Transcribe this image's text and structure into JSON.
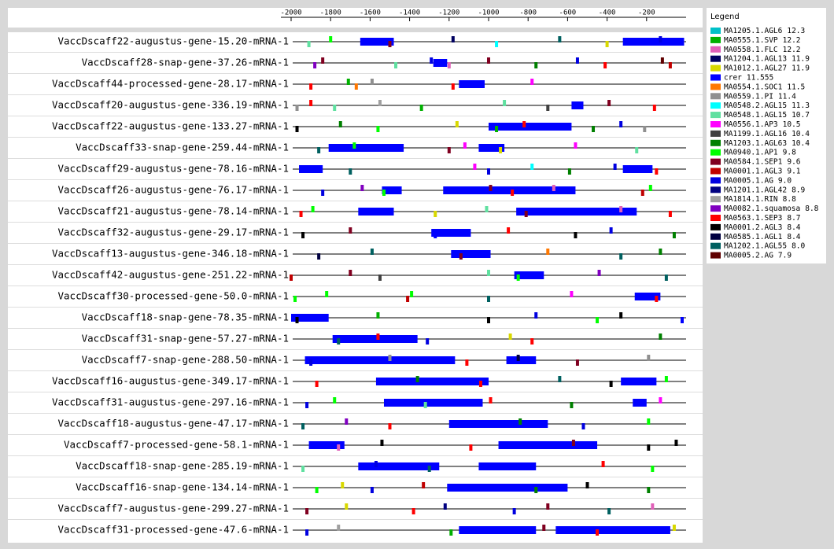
{
  "chart_data": {
    "type": "motif-track",
    "xlim": [
      -2000,
      0
    ],
    "xticks": [
      -2000,
      -1800,
      -1600,
      -1400,
      -1200,
      -1000,
      -800,
      -600,
      -400,
      -200
    ],
    "categories": [
      "VaccDscaff22-augustus-gene-15.20-mRNA-1",
      "VaccDscaff28-snap-gene-37.26-mRNA-1",
      "VaccDscaff44-processed-gene-28.17-mRNA-1",
      "VaccDscaff20-augustus-gene-336.19-mRNA-1",
      "VaccDscaff22-augustus-gene-133.27-mRNA-1",
      "VaccDscaff33-snap-gene-259.44-mRNA-1",
      "VaccDscaff29-augustus-gene-78.16-mRNA-1",
      "VaccDscaff26-augustus-gene-76.17-mRNA-1",
      "VaccDscaff21-augustus-gene-78.14-mRNA-1",
      "VaccDscaff32-augustus-gene-29.17-mRNA-1",
      "VaccDscaff13-augustus-gene-346.18-mRNA-1",
      "VaccDscaff42-augustus-gene-251.22-mRNA-1",
      "VaccDscaff30-processed-gene-50.0-mRNA-1",
      "VaccDscaff18-snap-gene-78.35-mRNA-1",
      "VaccDscaff31-snap-gene-57.27-mRNA-1",
      "VaccDscaff7-snap-gene-288.50-mRNA-1",
      "VaccDscaff16-augustus-gene-349.17-mRNA-1",
      "VaccDscaff31-augustus-gene-297.16-mRNA-1",
      "VaccDscaff18-augustus-gene-47.17-mRNA-1",
      "VaccDscaff7-processed-gene-58.1-mRNA-1",
      "VaccDscaff18-snap-gene-285.19-mRNA-1",
      "VaccDscaff16-snap-gene-134.14-mRNA-1",
      "VaccDscaff7-augustus-gene-299.27-mRNA-1",
      "VaccDscaff31-processed-gene-47.6-mRNA-1"
    ],
    "tracks": [
      {
        "blocks": [
          [
            -1650,
            -1480
          ],
          [
            -320,
            -10
          ]
        ],
        "sites": [
          [
            -1910,
            9
          ],
          [
            -1800,
            13
          ],
          [
            -1500,
            14
          ],
          [
            -1180,
            3
          ],
          [
            -960,
            8
          ],
          [
            -640,
            23
          ],
          [
            -400,
            4
          ],
          [
            -130,
            16
          ]
        ]
      },
      {
        "blocks": [
          [
            -1280,
            -1210
          ]
        ],
        "sites": [
          [
            -1880,
            19
          ],
          [
            -1840,
            14
          ],
          [
            -1470,
            9
          ],
          [
            -1290,
            16
          ],
          [
            -1200,
            2
          ],
          [
            -1000,
            14
          ],
          [
            -760,
            12
          ],
          [
            -550,
            16
          ],
          [
            -410,
            20
          ],
          [
            -120,
            24
          ],
          [
            -80,
            15
          ]
        ]
      },
      {
        "blocks": [
          [
            -1150,
            -1020
          ]
        ],
        "sites": [
          [
            -1900,
            20
          ],
          [
            -1710,
            1
          ],
          [
            -1670,
            6
          ],
          [
            -1590,
            7
          ],
          [
            -1180,
            20
          ],
          [
            -780,
            10
          ]
        ]
      },
      {
        "blocks": [
          [
            -580,
            -520
          ]
        ],
        "sites": [
          [
            -1970,
            7
          ],
          [
            -1900,
            20
          ],
          [
            -1780,
            9
          ],
          [
            -1550,
            18
          ],
          [
            -1340,
            1
          ],
          [
            -920,
            9
          ],
          [
            -700,
            11
          ],
          [
            -390,
            14
          ],
          [
            -160,
            20
          ]
        ]
      },
      {
        "blocks": [
          [
            -1000,
            -580
          ]
        ],
        "sites": [
          [
            -1970,
            21
          ],
          [
            -1750,
            12
          ],
          [
            -1560,
            13
          ],
          [
            -1160,
            4
          ],
          [
            -960,
            1
          ],
          [
            -820,
            20
          ],
          [
            -470,
            12
          ],
          [
            -330,
            16
          ],
          [
            -210,
            7
          ]
        ]
      },
      {
        "blocks": [
          [
            -1810,
            -1430
          ],
          [
            -1050,
            -920
          ]
        ],
        "sites": [
          [
            -1860,
            23
          ],
          [
            -1680,
            13
          ],
          [
            -1200,
            14
          ],
          [
            -1120,
            10
          ],
          [
            -940,
            4
          ],
          [
            -560,
            10
          ],
          [
            -250,
            9
          ]
        ]
      },
      {
        "blocks": [
          [
            -1960,
            -1840
          ],
          [
            -320,
            -170
          ]
        ],
        "sites": [
          [
            -1700,
            23
          ],
          [
            -1070,
            10
          ],
          [
            -1000,
            16
          ],
          [
            -780,
            8
          ],
          [
            -590,
            12
          ],
          [
            -360,
            16
          ],
          [
            -150,
            20
          ]
        ]
      },
      {
        "blocks": [
          [
            -1540,
            -1440
          ],
          [
            -1230,
            -560
          ]
        ],
        "sites": [
          [
            -1840,
            16
          ],
          [
            -1640,
            19
          ],
          [
            -1530,
            13
          ],
          [
            -990,
            14
          ],
          [
            -880,
            20
          ],
          [
            -670,
            2
          ],
          [
            -220,
            15
          ],
          [
            -180,
            13
          ]
        ]
      },
      {
        "blocks": [
          [
            -1660,
            -1480
          ],
          [
            -860,
            -250
          ]
        ],
        "sites": [
          [
            -1950,
            20
          ],
          [
            -1890,
            13
          ],
          [
            -1270,
            4
          ],
          [
            -1010,
            9
          ],
          [
            -810,
            14
          ],
          [
            -330,
            2
          ],
          [
            -80,
            20
          ]
        ]
      },
      {
        "blocks": [
          [
            -1290,
            -1090
          ]
        ],
        "sites": [
          [
            -1940,
            21
          ],
          [
            -1700,
            14
          ],
          [
            -1270,
            5
          ],
          [
            -900,
            20
          ],
          [
            -560,
            21
          ],
          [
            -380,
            16
          ],
          [
            -60,
            12
          ]
        ]
      },
      {
        "blocks": [
          [
            -1190,
            -990
          ]
        ],
        "sites": [
          [
            -1860,
            22
          ],
          [
            -1590,
            23
          ],
          [
            -1140,
            14
          ],
          [
            -700,
            6
          ],
          [
            -330,
            23
          ],
          [
            -130,
            12
          ]
        ]
      },
      {
        "blocks": [
          [
            -870,
            -720
          ]
        ],
        "sites": [
          [
            -2000,
            15
          ],
          [
            -1700,
            14
          ],
          [
            -1550,
            11
          ],
          [
            -1000,
            9
          ],
          [
            -850,
            13
          ],
          [
            -440,
            19
          ],
          [
            -100,
            23
          ]
        ]
      },
      {
        "blocks": [
          [
            -260,
            -130
          ]
        ],
        "sites": [
          [
            -1980,
            13
          ],
          [
            -1820,
            13
          ],
          [
            -1410,
            15
          ],
          [
            -1390,
            13
          ],
          [
            -1000,
            23
          ],
          [
            -580,
            10
          ],
          [
            -150,
            20
          ]
        ]
      },
      {
        "blocks": [
          [
            -2000,
            -1810
          ]
        ],
        "sites": [
          [
            -1970,
            21
          ],
          [
            -1560,
            1
          ],
          [
            -1000,
            21
          ],
          [
            -760,
            16
          ],
          [
            -450,
            13
          ],
          [
            -330,
            21
          ],
          [
            -20,
            5
          ]
        ]
      },
      {
        "blocks": [
          [
            -1790,
            -1360
          ]
        ],
        "sites": [
          [
            -1760,
            23
          ],
          [
            -1560,
            20
          ],
          [
            -1310,
            16
          ],
          [
            -890,
            4
          ],
          [
            -780,
            20
          ],
          [
            -130,
            12
          ]
        ]
      },
      {
        "blocks": [
          [
            -1930,
            -1170
          ],
          [
            -910,
            -760
          ]
        ],
        "sites": [
          [
            -1900,
            16
          ],
          [
            -1500,
            7
          ],
          [
            -1110,
            20
          ],
          [
            -850,
            22
          ],
          [
            -550,
            14
          ],
          [
            -190,
            7
          ]
        ]
      },
      {
        "blocks": [
          [
            -1570,
            -1000
          ],
          [
            -330,
            -150
          ]
        ],
        "sites": [
          [
            -1870,
            20
          ],
          [
            -1360,
            12
          ],
          [
            -1040,
            20
          ],
          [
            -640,
            23
          ],
          [
            -380,
            21
          ],
          [
            -100,
            13
          ]
        ]
      },
      {
        "blocks": [
          [
            -1530,
            -1030
          ],
          [
            -270,
            -200
          ]
        ],
        "sites": [
          [
            -1920,
            16
          ],
          [
            -1780,
            13
          ],
          [
            -1320,
            9
          ],
          [
            -990,
            20
          ],
          [
            -580,
            12
          ],
          [
            -130,
            10
          ]
        ]
      },
      {
        "blocks": [
          [
            -1200,
            -700
          ]
        ],
        "sites": [
          [
            -1940,
            23
          ],
          [
            -1720,
            19
          ],
          [
            -1500,
            20
          ],
          [
            -840,
            12
          ],
          [
            -520,
            16
          ],
          [
            -190,
            13
          ]
        ]
      },
      {
        "blocks": [
          [
            -1910,
            -1730
          ],
          [
            -950,
            -450
          ]
        ],
        "sites": [
          [
            -1760,
            2
          ],
          [
            -1540,
            21
          ],
          [
            -1090,
            20
          ],
          [
            -570,
            14
          ],
          [
            -190,
            21
          ],
          [
            -50,
            21
          ]
        ]
      },
      {
        "blocks": [
          [
            -1660,
            -1250
          ],
          [
            -1050,
            -760
          ]
        ],
        "sites": [
          [
            -1940,
            9
          ],
          [
            -1570,
            16
          ],
          [
            -1300,
            23
          ],
          [
            -420,
            20
          ],
          [
            -170,
            13
          ]
        ]
      },
      {
        "blocks": [
          [
            -1210,
            -600
          ]
        ],
        "sites": [
          [
            -1870,
            13
          ],
          [
            -1740,
            4
          ],
          [
            -1590,
            16
          ],
          [
            -1330,
            15
          ],
          [
            -760,
            12
          ],
          [
            -500,
            21
          ],
          [
            -190,
            12
          ]
        ]
      },
      {
        "blocks": [],
        "sites": [
          [
            -1920,
            14
          ],
          [
            -1720,
            4
          ],
          [
            -1380,
            20
          ],
          [
            -1220,
            17
          ],
          [
            -870,
            16
          ],
          [
            -700,
            14
          ],
          [
            -390,
            23
          ],
          [
            -170,
            2
          ]
        ]
      },
      {
        "blocks": [
          [
            -1150,
            -760
          ],
          [
            -660,
            -80
          ]
        ],
        "sites": [
          [
            -1920,
            16
          ],
          [
            -1760,
            18
          ],
          [
            -1190,
            1
          ],
          [
            -720,
            14
          ],
          [
            -450,
            20
          ],
          [
            -60,
            4
          ]
        ]
      }
    ],
    "legend_title": "Legend",
    "motifs": [
      {
        "name": "MA1205.1.AGL6",
        "score": 12.3,
        "color": "#00c0c8"
      },
      {
        "name": "MA0555.1.SVP",
        "score": 12.2,
        "color": "#00b000"
      },
      {
        "name": "MA0558.1.FLC",
        "score": 12.2,
        "color": "#e060b8"
      },
      {
        "name": "MA1204.1.AGL13",
        "score": 11.9,
        "color": "#000060"
      },
      {
        "name": "MA1012.1.AGL27",
        "score": 11.9,
        "color": "#d8d800"
      },
      {
        "name": "crer",
        "score": 11.555,
        "color": "#0000ff"
      },
      {
        "name": "MA0554.1.SOC1",
        "score": 11.5,
        "color": "#ff7800"
      },
      {
        "name": "MA0559.1.PI",
        "score": 11.4,
        "color": "#909090"
      },
      {
        "name": "MA0548.2.AGL15",
        "score": 11.3,
        "color": "#00ffff"
      },
      {
        "name": "MA0548.1.AGL15",
        "score": 10.7,
        "color": "#60e0a0"
      },
      {
        "name": "MA0556.1.AP3",
        "score": 10.5,
        "color": "#ff00ff"
      },
      {
        "name": "MA1199.1.AGL16",
        "score": 10.4,
        "color": "#404040"
      },
      {
        "name": "MA1203.1.AGL63",
        "score": 10.4,
        "color": "#008000"
      },
      {
        "name": "MA0940.1.AP1",
        "score": 9.8,
        "color": "#00ff00"
      },
      {
        "name": "MA0584.1.SEP1",
        "score": 9.6,
        "color": "#800020"
      },
      {
        "name": "MA0001.1.AGL3",
        "score": 9.1,
        "color": "#c00000"
      },
      {
        "name": "MA0005.1.AG",
        "score": {
          "value": 9,
          "label": "9.0"
        },
        "color": "#0000e0"
      },
      {
        "name": "MA1201.1.AGL42",
        "score": 8.9,
        "color": "#000080"
      },
      {
        "name": "MA1814.1.RIN",
        "score": 8.8,
        "color": "#a0a0a0"
      },
      {
        "name": "MA0082.1.squamosa",
        "score": 8.8,
        "color": "#8000c0"
      },
      {
        "name": "MA0563.1.SEP3",
        "score": 8.7,
        "color": "#ff0000"
      },
      {
        "name": "MA0001.2.AGL3",
        "score": 8.4,
        "color": "#000000"
      },
      {
        "name": "MA0585.1.AGL1",
        "score": 8.4,
        "color": "#000040"
      },
      {
        "name": "MA1202.1.AGL55",
        "score": {
          "value": 8,
          "label": "8.0"
        },
        "color": "#006060"
      },
      {
        "name": "MA0005.2.AG",
        "score": 7.9,
        "color": "#600000"
      }
    ]
  }
}
